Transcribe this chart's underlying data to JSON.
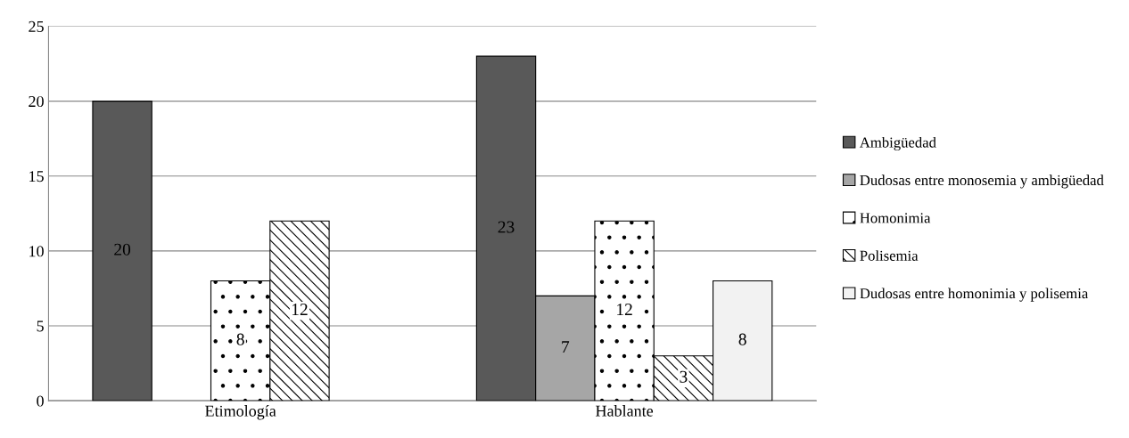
{
  "chart_data": {
    "type": "bar",
    "categories": [
      "Etimología",
      "Hablante"
    ],
    "series": [
      {
        "name": "Ambigüedad",
        "color": "#595959",
        "values": [
          20,
          23
        ]
      },
      {
        "name": "Dudosas entre monosemia y ambigüedad",
        "color": "#a6a6a6",
        "values": [
          null,
          7
        ]
      },
      {
        "name": "Homonimia",
        "color": "#ffffff",
        "values": [
          8,
          12
        ]
      },
      {
        "name": "Polisemia",
        "color": "#ffffff",
        "values": [
          12,
          3
        ]
      },
      {
        "name": "Dudosas entre homonimia y polisemia",
        "color": "#f2f2f2",
        "values": [
          null,
          8
        ]
      }
    ],
    "ylim": [
      0,
      25
    ],
    "yticks": [
      0,
      5,
      10,
      15,
      20,
      25
    ],
    "grid": "y",
    "legend": "right",
    "data_labels": true
  }
}
